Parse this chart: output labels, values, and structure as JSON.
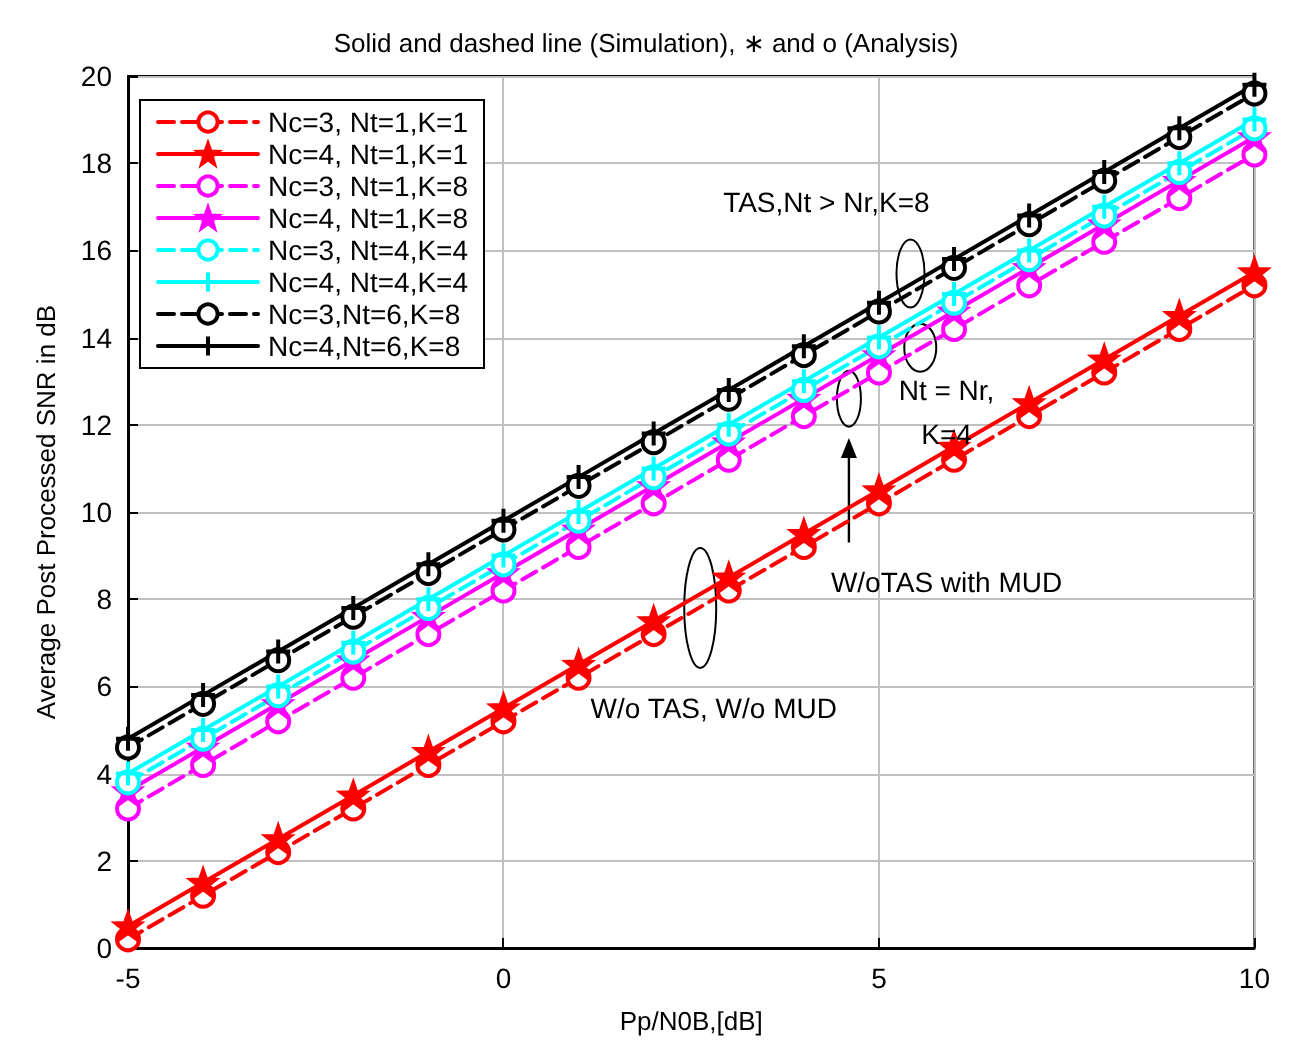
{
  "chart_data": {
    "type": "line",
    "title": "Solid and dashed line (Simulation), ∗ and o (Analysis)",
    "xlabel": "Pp/N0B,[dB]",
    "ylabel": "Average Post Processed SNR in dB",
    "x": [
      -5,
      -4,
      -3,
      -2,
      -1,
      0,
      1,
      2,
      3,
      4,
      5,
      6,
      7,
      8,
      9,
      10
    ],
    "series": [
      {
        "name": "Nc=3, Nt=1,K=1",
        "color": "#ff0000",
        "marker": "circle",
        "line_style": "dashed",
        "values": [
          0.2,
          1.2,
          2.2,
          3.2,
          4.2,
          5.2,
          6.2,
          7.2,
          8.2,
          9.2,
          10.2,
          11.2,
          12.2,
          13.2,
          14.2,
          15.2
        ]
      },
      {
        "name": "Nc=4, Nt=1,K=1",
        "color": "#ff0000",
        "marker": "star",
        "line_style": "solid",
        "values": [
          0.5,
          1.5,
          2.5,
          3.5,
          4.5,
          5.5,
          6.5,
          7.5,
          8.5,
          9.5,
          10.5,
          11.5,
          12.5,
          13.5,
          14.5,
          15.5
        ]
      },
      {
        "name": "Nc=3, Nt=1,K=8",
        "color": "#ff00ff",
        "marker": "circle",
        "line_style": "dashed",
        "values": [
          3.2,
          4.2,
          5.2,
          6.2,
          7.2,
          8.2,
          9.2,
          10.2,
          11.2,
          12.2,
          13.2,
          14.2,
          15.2,
          16.2,
          17.2,
          18.2
        ]
      },
      {
        "name": "Nc=4, Nt=1,K=8",
        "color": "#ff00ff",
        "marker": "star",
        "line_style": "solid",
        "values": [
          3.6,
          4.6,
          5.6,
          6.6,
          7.6,
          8.6,
          9.6,
          10.6,
          11.6,
          12.6,
          13.6,
          14.6,
          15.6,
          16.6,
          17.6,
          18.6
        ]
      },
      {
        "name": "Nc=3, Nt=4,K=4",
        "color": "#00ffff",
        "marker": "circle",
        "line_style": "dashed",
        "values": [
          3.8,
          4.8,
          5.8,
          6.8,
          7.8,
          8.8,
          9.8,
          10.8,
          11.8,
          12.8,
          13.8,
          14.8,
          15.8,
          16.8,
          17.8,
          18.8
        ]
      },
      {
        "name": "Nc=4, Nt=4,K=4",
        "color": "#00ffff",
        "marker": "cross",
        "line_style": "solid",
        "values": [
          4.0,
          5.0,
          6.0,
          7.0,
          8.0,
          9.0,
          10.0,
          11.0,
          12.0,
          13.0,
          14.0,
          15.0,
          16.0,
          17.0,
          18.0,
          19.0
        ]
      },
      {
        "name": "Nc=3,Nt=6,K=8",
        "color": "#000000",
        "marker": "circle",
        "line_style": "dashed",
        "values": [
          4.6,
          5.6,
          6.6,
          7.6,
          8.6,
          9.6,
          10.6,
          11.6,
          12.6,
          13.6,
          14.6,
          15.6,
          16.6,
          17.6,
          18.6,
          19.6
        ]
      },
      {
        "name": "Nc=4,Nt=6,K=8",
        "color": "#000000",
        "marker": "cross",
        "line_style": "solid",
        "values": [
          4.8,
          5.8,
          6.8,
          7.8,
          8.8,
          9.8,
          10.8,
          11.8,
          12.8,
          13.8,
          14.8,
          15.8,
          16.8,
          17.8,
          18.8,
          19.8
        ]
      }
    ],
    "xlim": [
      -5,
      10
    ],
    "xticks": [
      -5,
      0,
      5,
      10
    ],
    "ylim": [
      0,
      20
    ],
    "yticks": [
      0,
      2,
      4,
      6,
      8,
      10,
      12,
      14,
      16,
      18,
      20
    ],
    "grid": true,
    "legend": "top left",
    "annotations": [
      "TAS,Nt > Nr,K=8",
      "Nt = Nr,\nK=4",
      "W/oTAS with MUD",
      "W/o TAS, W/o MUD"
    ]
  }
}
